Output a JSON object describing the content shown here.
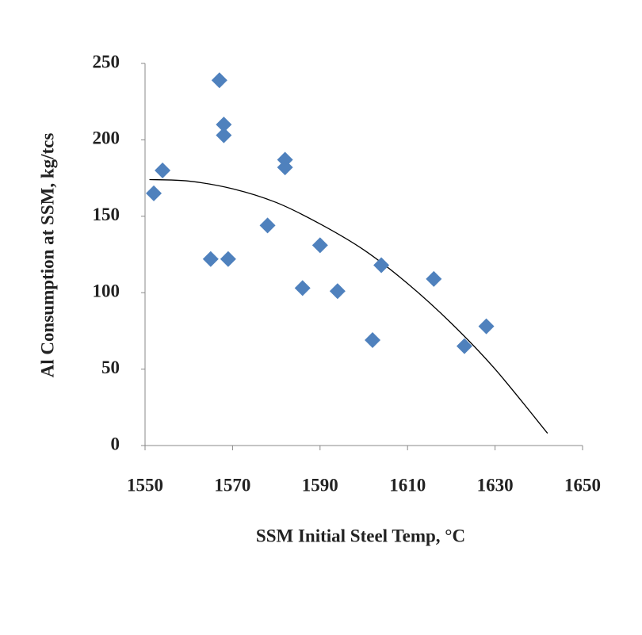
{
  "chart_data": {
    "type": "scatter",
    "x_label": "SSM Initial Steel Temp, °C",
    "y_label": "Al Consumption at SSM, kg/tcs",
    "xlim": [
      1550,
      1650
    ],
    "xticks": [
      1550,
      1570,
      1590,
      1610,
      1630,
      1650
    ],
    "ylim": [
      0,
      250
    ],
    "yticks": [
      0,
      50,
      100,
      150,
      200,
      250
    ],
    "grid": false,
    "series": [
      {
        "color": "#4f81bd",
        "marker": "diamond",
        "x": [
          1552,
          1554,
          1567,
          1568,
          1568,
          1565,
          1569,
          1578,
          1582,
          1582,
          1586,
          1590,
          1594,
          1602,
          1604,
          1616,
          1623,
          1628
        ],
        "values": [
          165,
          180,
          239,
          210,
          203,
          122,
          122,
          144,
          187,
          182,
          103,
          131,
          101,
          69,
          118,
          109,
          65,
          78
        ]
      }
    ],
    "trendline": {
      "color": "#000000",
      "x": [
        1551,
        1560,
        1570,
        1580,
        1590,
        1600,
        1610,
        1620,
        1630,
        1642
      ],
      "values": [
        174,
        173,
        168,
        159,
        145,
        128,
        106,
        80,
        50,
        8
      ]
    }
  }
}
